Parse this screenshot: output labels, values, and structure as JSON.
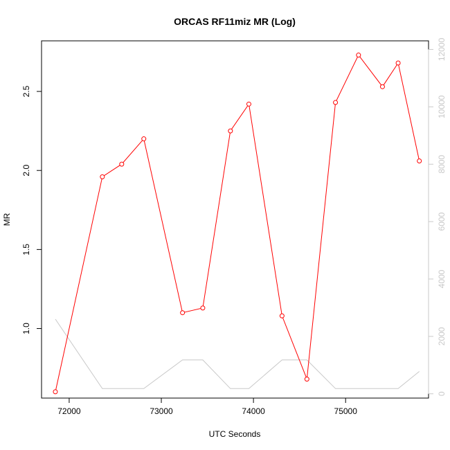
{
  "chart_data": {
    "type": "line",
    "title": "ORCAS RF11miz MR (Log)",
    "xlabel": "UTC Seconds",
    "ylabel": "MR",
    "xlim": [
      71700,
      75900
    ],
    "ylim": [
      0.56,
      2.82
    ],
    "y2lim": [
      -150,
      12300
    ],
    "x_ticks": [
      72000,
      73000,
      74000,
      75000
    ],
    "x_tick_labels": [
      "72000",
      "73000",
      "74000",
      "75000"
    ],
    "y_ticks": [
      1.0,
      1.5,
      2.0,
      2.5
    ],
    "y_tick_labels": [
      "1.0",
      "1.5",
      "2.0",
      "2.5"
    ],
    "y2_ticks": [
      0,
      2000,
      4000,
      6000,
      8000,
      10000,
      12000
    ],
    "y2_tick_labels": [
      "0",
      "2000",
      "4000",
      "6000",
      "8000",
      "10000",
      "12000"
    ],
    "grid": false,
    "series": [
      {
        "color": "#ff0000",
        "axis": "left",
        "markers": true,
        "x": [
          71850,
          72360,
          72570,
          72810,
          73230,
          73450,
          73750,
          73950,
          74310,
          74580,
          74890,
          75140,
          75400,
          75570,
          75800
        ],
        "y": [
          0.6,
          1.96,
          2.04,
          2.2,
          1.1,
          1.13,
          2.25,
          2.42,
          1.08,
          0.68,
          2.43,
          2.73,
          2.53,
          2.68,
          2.06
        ]
      },
      {
        "color": "#c8c8c8",
        "axis": "right",
        "markers": false,
        "x": [
          71850,
          72360,
          72570,
          72810,
          73230,
          73450,
          73750,
          73950,
          74310,
          74580,
          74890,
          75140,
          75400,
          75570,
          75800
        ],
        "y": [
          2600,
          180,
          180,
          180,
          1180,
          1180,
          180,
          180,
          1180,
          1180,
          180,
          180,
          180,
          180,
          780
        ]
      }
    ]
  }
}
